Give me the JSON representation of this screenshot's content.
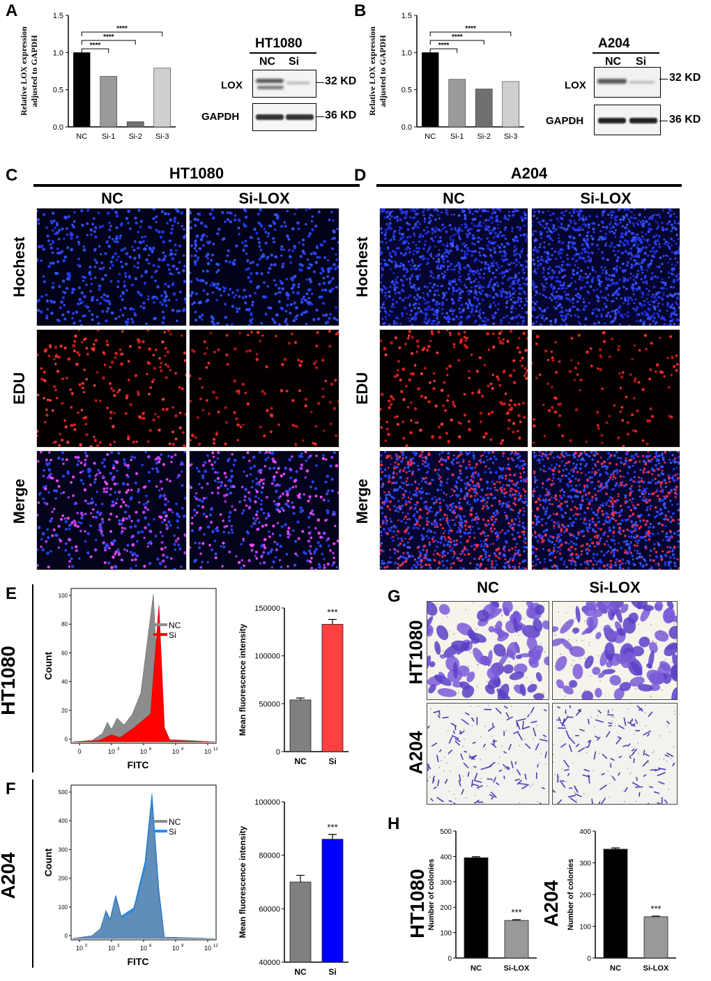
{
  "panels": {
    "A": {
      "letter": "A",
      "ylabel_line1": "Relative LOX  expression",
      "ylabel_line2": "adjusted to GAPDH",
      "chart_data": {
        "type": "bar",
        "categories": [
          "NC",
          "Si-1",
          "Si-2",
          "Si-3"
        ],
        "values": [
          1.0,
          0.68,
          0.07,
          0.79
        ],
        "ylim": [
          0,
          1.5
        ],
        "yticks": [
          "0.0",
          "0.5",
          "1.0",
          "1.5"
        ],
        "colors": [
          "#000000",
          "#9a9a9a",
          "#6f6f6f",
          "#cfcfcf"
        ],
        "sig": [
          "****",
          "****",
          "****"
        ]
      },
      "blot": {
        "cell": "HT1080",
        "lanes": [
          "NC",
          "Si"
        ],
        "rows": [
          "LOX",
          "GAPDH"
        ],
        "sizes": [
          "32 KD",
          "36 KD"
        ]
      }
    },
    "B": {
      "letter": "B",
      "ylabel_line1": "Relative LOX  expression",
      "ylabel_line2": "adjusted to GAPDH",
      "chart_data": {
        "type": "bar",
        "categories": [
          "NC",
          "Si-1",
          "Si-2",
          "Si-3"
        ],
        "values": [
          1.0,
          0.64,
          0.51,
          0.61
        ],
        "ylim": [
          0,
          1.5
        ],
        "yticks": [
          "0.0",
          "0.5",
          "1.0",
          "1.5"
        ],
        "colors": [
          "#000000",
          "#9a9a9a",
          "#6f6f6f",
          "#cfcfcf"
        ],
        "sig": [
          "****",
          "****",
          "****"
        ]
      },
      "blot": {
        "cell": "A204",
        "lanes": [
          "NC",
          "Si"
        ],
        "rows": [
          "LOX",
          "GAPDH"
        ],
        "sizes": [
          "32 KD",
          "36 KD"
        ]
      }
    },
    "C": {
      "letter": "C",
      "cell": "HT1080",
      "cols": [
        "NC",
        "Si-LOX"
      ],
      "rows": [
        "Hochest",
        "EDU",
        "Merge"
      ]
    },
    "D": {
      "letter": "D",
      "cell": "A204",
      "cols": [
        "NC",
        "Si-LOX"
      ],
      "rows": [
        "Hochest",
        "EDU",
        "Merge"
      ]
    },
    "E": {
      "letter": "E",
      "cell": "HT1080",
      "hist": {
        "xlabel": "FITC",
        "ylabel": "Count",
        "yticks": [
          "0",
          "20",
          "40",
          "60",
          "80",
          "100"
        ],
        "xticks": [
          "0",
          "10",
          "10",
          "10",
          "10"
        ],
        "xexp": [
          "",
          "3",
          "6",
          "9",
          "12"
        ],
        "legend": [
          "NC",
          "Si"
        ],
        "colors": [
          "#8c8c8c",
          "#ff0000"
        ]
      },
      "chart_data": {
        "type": "bar",
        "categories": [
          "NC",
          "Si"
        ],
        "values": [
          54000,
          133000
        ],
        "errors": [
          2000,
          5000
        ],
        "ylim": [
          0,
          150000
        ],
        "yticks": [
          "0",
          "50000",
          "100000",
          "150000"
        ],
        "ylabel": "Mean fluorescence intensity",
        "colors": [
          "#808080",
          "#ff4040"
        ],
        "sig": "***"
      }
    },
    "F": {
      "letter": "F",
      "cell": "A204",
      "hist": {
        "xlabel": "FITC",
        "ylabel": "Count",
        "yticks": [
          "0",
          "100",
          "200",
          "300",
          "400",
          "500"
        ],
        "xticks": [
          "10",
          "10",
          "10",
          "10",
          "10"
        ],
        "xexp": [
          "0",
          "3",
          "6",
          "9",
          "12"
        ],
        "legend": [
          "NC",
          "Si"
        ],
        "colors": [
          "#8c8c8c",
          "#1e90ff"
        ]
      },
      "chart_data": {
        "type": "bar",
        "categories": [
          "NC",
          "Si"
        ],
        "values": [
          70000,
          86000
        ],
        "errors": [
          2500,
          1800
        ],
        "ylim": [
          40000,
          100000
        ],
        "yticks": [
          "40000",
          "60000",
          "80000",
          "100000"
        ],
        "ylabel": "Mean fluorescence intensity",
        "colors": [
          "#808080",
          "#0000ff"
        ],
        "sig": "***"
      }
    },
    "G": {
      "letter": "G",
      "cols": [
        "NC",
        "Si-LOX"
      ],
      "rows": [
        "HT1080",
        "A204"
      ]
    },
    "H": {
      "letter": "H",
      "charts": [
        {
          "cell": "HT1080",
          "chart_data": {
            "type": "bar",
            "categories": [
              "NC",
              "Si-LOX"
            ],
            "values": [
              395,
              148
            ],
            "errors": [
              4,
              3
            ],
            "ylim": [
              0,
              500
            ],
            "yticks": [
              "0",
              "100",
              "200",
              "300",
              "400",
              "500"
            ],
            "ylabel": "Number of colonies",
            "colors": [
              "#000000",
              "#999999"
            ],
            "sig": "***"
          }
        },
        {
          "cell": "A204",
          "chart_data": {
            "type": "bar",
            "categories": [
              "NC",
              "Si-LOX"
            ],
            "values": [
              343,
              130
            ],
            "errors": [
              4,
              2
            ],
            "ylim": [
              0,
              400
            ],
            "yticks": [
              "0",
              "100",
              "200",
              "300",
              "400"
            ],
            "ylabel": "Number of colonies",
            "colors": [
              "#000000",
              "#999999"
            ],
            "sig": "***"
          }
        }
      ]
    }
  }
}
